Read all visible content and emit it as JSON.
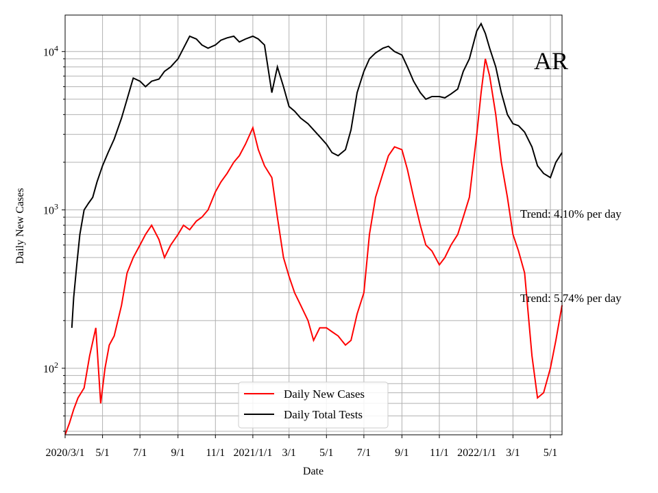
{
  "chart_data": {
    "type": "line",
    "title": "",
    "state_label": "AR",
    "xlabel": "Date",
    "ylabel": "Daily New Cases",
    "y_scale": "log",
    "ylim": [
      38,
      17000
    ],
    "xlim": [
      "2020-03-01",
      "2022-05-20"
    ],
    "grid": "major and minor",
    "legend_position": "lower center",
    "x_tick_labels": [
      {
        "date": "2020-03-01",
        "label": "2020/3/1"
      },
      {
        "date": "2020-05-01",
        "label": "5/1"
      },
      {
        "date": "2020-07-01",
        "label": "7/1"
      },
      {
        "date": "2020-09-01",
        "label": "9/1"
      },
      {
        "date": "2020-11-01",
        "label": "11/1"
      },
      {
        "date": "2021-01-01",
        "label": "2021/1/1"
      },
      {
        "date": "2021-03-01",
        "label": "3/1"
      },
      {
        "date": "2021-05-01",
        "label": "5/1"
      },
      {
        "date": "2021-07-01",
        "label": "7/1"
      },
      {
        "date": "2021-09-01",
        "label": "9/1"
      },
      {
        "date": "2021-11-01",
        "label": "11/1"
      },
      {
        "date": "2022-01-01",
        "label": "2022/1/1"
      },
      {
        "date": "2022-03-01",
        "label": "3/1"
      },
      {
        "date": "2022-05-01",
        "label": "5/1"
      }
    ],
    "y_tick_labels": [
      {
        "value": 100,
        "base": "10",
        "exp": "2"
      },
      {
        "value": 1000,
        "base": "10",
        "exp": "3"
      },
      {
        "value": 10000,
        "base": "10",
        "exp": "4"
      }
    ],
    "annotations": [
      "Trend: 4.10% per day",
      "Trend: 5.74% per day"
    ],
    "colors": {
      "cases": "#ff0000",
      "tests": "#000000",
      "grid": "#b0b0b0"
    },
    "series": [
      {
        "name": "Daily New Cases",
        "color": "#ff0000",
        "x": [
          "2020-03-01",
          "2020-03-08",
          "2020-03-15",
          "2020-03-22",
          "2020-04-01",
          "2020-04-10",
          "2020-04-20",
          "2020-04-28",
          "2020-05-05",
          "2020-05-12",
          "2020-05-20",
          "2020-06-01",
          "2020-06-10",
          "2020-06-20",
          "2020-07-01",
          "2020-07-10",
          "2020-07-20",
          "2020-08-01",
          "2020-08-10",
          "2020-08-20",
          "2020-09-01",
          "2020-09-10",
          "2020-09-20",
          "2020-10-01",
          "2020-10-10",
          "2020-10-20",
          "2020-11-01",
          "2020-11-10",
          "2020-11-20",
          "2020-12-01",
          "2020-12-10",
          "2020-12-20",
          "2021-01-01",
          "2021-01-10",
          "2021-01-20",
          "2021-02-01",
          "2021-02-10",
          "2021-02-20",
          "2021-03-01",
          "2021-03-10",
          "2021-03-20",
          "2021-04-01",
          "2021-04-10",
          "2021-04-20",
          "2021-05-01",
          "2021-05-10",
          "2021-05-20",
          "2021-06-01",
          "2021-06-10",
          "2021-06-20",
          "2021-07-01",
          "2021-07-10",
          "2021-07-20",
          "2021-08-01",
          "2021-08-10",
          "2021-08-20",
          "2021-09-01",
          "2021-09-10",
          "2021-09-20",
          "2021-10-01",
          "2021-10-10",
          "2021-10-20",
          "2021-11-01",
          "2021-11-10",
          "2021-11-20",
          "2021-12-01",
          "2021-12-10",
          "2021-12-20",
          "2022-01-01",
          "2022-01-08",
          "2022-01-15",
          "2022-01-22",
          "2022-02-01",
          "2022-02-10",
          "2022-02-20",
          "2022-03-01",
          "2022-03-10",
          "2022-03-20",
          "2022-04-01",
          "2022-04-10",
          "2022-04-20",
          "2022-05-01",
          "2022-05-10",
          "2022-05-20"
        ],
        "y": [
          38,
          45,
          55,
          65,
          75,
          120,
          180,
          60,
          100,
          140,
          160,
          250,
          400,
          500,
          600,
          700,
          800,
          650,
          500,
          600,
          700,
          800,
          750,
          850,
          900,
          1000,
          1300,
          1500,
          1700,
          2000,
          2200,
          2600,
          3300,
          2400,
          1900,
          1600,
          900,
          500,
          380,
          300,
          250,
          200,
          150,
          180,
          180,
          170,
          160,
          140,
          150,
          220,
          300,
          700,
          1200,
          1700,
          2200,
          2500,
          2400,
          1800,
          1200,
          800,
          600,
          550,
          450,
          500,
          600,
          700,
          900,
          1200,
          3000,
          5500,
          9000,
          7000,
          4000,
          2000,
          1200,
          700,
          550,
          400,
          120,
          65,
          70,
          100,
          150,
          250
        ]
      },
      {
        "name": "Daily Total Tests",
        "color": "#000000",
        "x": [
          "2020-03-12",
          "2020-03-15",
          "2020-03-20",
          "2020-03-25",
          "2020-04-01",
          "2020-04-08",
          "2020-04-15",
          "2020-04-22",
          "2020-05-01",
          "2020-05-10",
          "2020-05-20",
          "2020-06-01",
          "2020-06-10",
          "2020-06-20",
          "2020-07-01",
          "2020-07-10",
          "2020-07-20",
          "2020-08-01",
          "2020-08-10",
          "2020-08-20",
          "2020-09-01",
          "2020-09-10",
          "2020-09-20",
          "2020-10-01",
          "2020-10-10",
          "2020-10-20",
          "2020-11-01",
          "2020-11-10",
          "2020-11-20",
          "2020-12-01",
          "2020-12-10",
          "2020-12-20",
          "2021-01-01",
          "2021-01-10",
          "2021-01-20",
          "2021-02-01",
          "2021-02-10",
          "2021-02-20",
          "2021-03-01",
          "2021-03-10",
          "2021-03-20",
          "2021-04-01",
          "2021-04-10",
          "2021-04-20",
          "2021-05-01",
          "2021-05-10",
          "2021-05-20",
          "2021-06-01",
          "2021-06-10",
          "2021-06-20",
          "2021-07-01",
          "2021-07-10",
          "2021-07-20",
          "2021-08-01",
          "2021-08-10",
          "2021-08-20",
          "2021-09-01",
          "2021-09-10",
          "2021-09-20",
          "2021-10-01",
          "2021-10-10",
          "2021-10-20",
          "2021-11-01",
          "2021-11-10",
          "2021-11-20",
          "2021-12-01",
          "2021-12-10",
          "2021-12-20",
          "2022-01-01",
          "2022-01-08",
          "2022-01-15",
          "2022-01-22",
          "2022-02-01",
          "2022-02-10",
          "2022-02-20",
          "2022-03-01",
          "2022-03-10",
          "2022-03-20",
          "2022-04-01",
          "2022-04-10",
          "2022-04-20",
          "2022-05-01",
          "2022-05-10",
          "2022-05-20"
        ],
        "y": [
          180,
          280,
          450,
          700,
          1000,
          1100,
          1200,
          1500,
          1900,
          2300,
          2800,
          3800,
          5000,
          6800,
          6500,
          6000,
          6500,
          6700,
          7500,
          8000,
          9000,
          10500,
          12500,
          12000,
          11000,
          10500,
          11000,
          11800,
          12200,
          12500,
          11500,
          12000,
          12500,
          12000,
          11000,
          5500,
          8000,
          6000,
          4500,
          4200,
          3800,
          3500,
          3200,
          2900,
          2600,
          2300,
          2200,
          2400,
          3200,
          5500,
          7500,
          9000,
          9800,
          10500,
          10800,
          10000,
          9500,
          8000,
          6500,
          5500,
          5000,
          5200,
          5200,
          5100,
          5400,
          5800,
          7500,
          9000,
          13500,
          15000,
          13000,
          10500,
          8000,
          5500,
          4000,
          3500,
          3400,
          3100,
          2500,
          1900,
          1700,
          1600,
          2000,
          2300
        ]
      }
    ]
  }
}
